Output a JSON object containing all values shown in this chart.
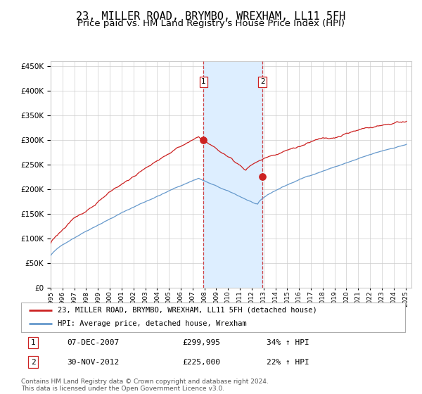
{
  "title": "23, MILLER ROAD, BRYMBO, WREXHAM, LL11 5FH",
  "subtitle": "Price paid vs. HM Land Registry's House Price Index (HPI)",
  "legend_line1": "23, MILLER ROAD, BRYMBO, WREXHAM, LL11 5FH (detached house)",
  "legend_line2": "HPI: Average price, detached house, Wrexham",
  "table_row1_num": "1",
  "table_row1_date": "07-DEC-2007",
  "table_row1_price": "£299,995",
  "table_row1_hpi": "34% ↑ HPI",
  "table_row2_num": "2",
  "table_row2_date": "30-NOV-2012",
  "table_row2_price": "£225,000",
  "table_row2_hpi": "22% ↑ HPI",
  "footer": "Contains HM Land Registry data © Crown copyright and database right 2024.\nThis data is licensed under the Open Government Licence v3.0.",
  "sale1_date_num": 2007.93,
  "sale1_price": 299995,
  "sale2_date_num": 2012.91,
  "sale2_price": 225000,
  "hpi_color": "#6699cc",
  "price_color": "#cc2222",
  "highlight_color": "#ddeeff",
  "grid_color": "#cccccc",
  "bg_color": "#ffffff",
  "ylim_min": 0,
  "ylim_max": 460000,
  "xlim_min": 1995.0,
  "xlim_max": 2025.5,
  "title_fontsize": 11,
  "subtitle_fontsize": 9.5
}
